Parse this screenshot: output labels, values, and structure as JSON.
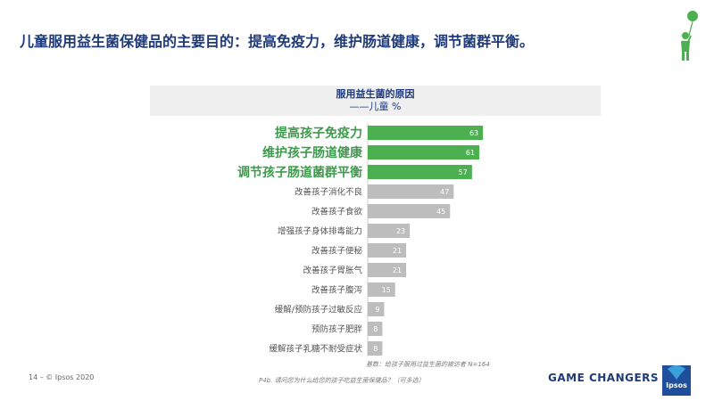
{
  "headline": "儿童服用益生菌保健品的主要目的：提高免疫力，维护肠道健康，调节菌群平衡。",
  "chart_data": {
    "type": "bar",
    "orientation": "horizontal",
    "title": "服用益生菌的原因",
    "subtitle": "——儿童 %",
    "categories": [
      "提高孩子免疫力",
      "维护孩子肠道健康",
      "调节孩子肠道菌群平衡",
      "改善孩子消化不良",
      "改善孩子食欲",
      "增强孩子身体排毒能力",
      "改善孩子便秘",
      "改善孩子胃胀气",
      "改善孩子腹泻",
      "缓解/预防孩子过敏反应",
      "预防孩子肥胖",
      "缓解孩子乳糖不耐受症状"
    ],
    "values": [
      63,
      61,
      57,
      47,
      45,
      23,
      21,
      21,
      15,
      9,
      8,
      8
    ],
    "highlighted": [
      true,
      true,
      true,
      false,
      false,
      false,
      false,
      false,
      false,
      false,
      false,
      false
    ],
    "xlim": [
      0,
      100
    ],
    "grid": false,
    "legend": "none",
    "colors": {
      "highlight": "#4caf50",
      "normal": "#bdbdbd",
      "highlight_label": "#3e9a4c",
      "normal_label": "#555555"
    }
  },
  "footnotes": {
    "base": "基数：给孩子服用过益生菌的被访者 N=164",
    "question": "P4b. 请问您为什么给您的孩子吃益生菌保健品？（可多选）"
  },
  "footer": {
    "page": "14 –  © Ipsos 2020",
    "tagline": "GAME CHANGERS",
    "logo_text": "Ipsos"
  },
  "icons": {
    "corner": "person-with-balloon-icon",
    "logo": "ipsos-logo"
  }
}
